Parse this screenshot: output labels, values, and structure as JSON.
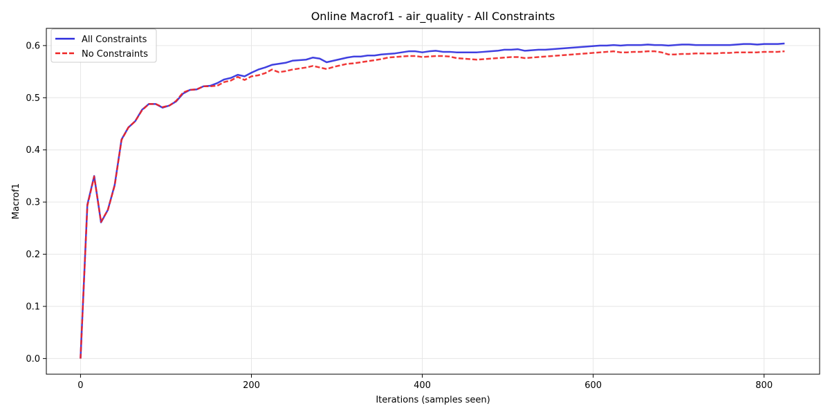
{
  "chart_data": {
    "type": "line",
    "title": "Online Macrof1 - air_quality - All Constraints",
    "xlabel": "Iterations (samples seen)",
    "ylabel": "Macrof1",
    "xlim": [
      -40,
      865
    ],
    "ylim": [
      -0.03,
      0.633
    ],
    "xticks": [
      0,
      200,
      400,
      600,
      800
    ],
    "yticks": [
      0.0,
      0.1,
      0.2,
      0.3,
      0.4,
      0.5,
      0.6
    ],
    "ytick_labels": [
      "0.0",
      "0.1",
      "0.2",
      "0.3",
      "0.4",
      "0.5",
      "0.6"
    ],
    "grid": true,
    "legend_position": "top-left",
    "series": [
      {
        "name": "All Constraints",
        "color": "#2b2bdd",
        "style": "solid",
        "points": [
          [
            0,
            0.0
          ],
          [
            8,
            0.295
          ],
          [
            16,
            0.35
          ],
          [
            24,
            0.261
          ],
          [
            32,
            0.285
          ],
          [
            40,
            0.333
          ],
          [
            48,
            0.42
          ],
          [
            56,
            0.443
          ],
          [
            64,
            0.455
          ],
          [
            72,
            0.477
          ],
          [
            80,
            0.488
          ],
          [
            88,
            0.488
          ],
          [
            96,
            0.481
          ],
          [
            104,
            0.485
          ],
          [
            112,
            0.493
          ],
          [
            120,
            0.508
          ],
          [
            128,
            0.515
          ],
          [
            136,
            0.516
          ],
          [
            144,
            0.522
          ],
          [
            152,
            0.523
          ],
          [
            160,
            0.528
          ],
          [
            168,
            0.535
          ],
          [
            176,
            0.538
          ],
          [
            184,
            0.544
          ],
          [
            192,
            0.541
          ],
          [
            200,
            0.548
          ],
          [
            208,
            0.554
          ],
          [
            216,
            0.558
          ],
          [
            224,
            0.563
          ],
          [
            232,
            0.565
          ],
          [
            240,
            0.567
          ],
          [
            248,
            0.571
          ],
          [
            256,
            0.572
          ],
          [
            264,
            0.573
          ],
          [
            272,
            0.577
          ],
          [
            280,
            0.575
          ],
          [
            288,
            0.568
          ],
          [
            296,
            0.571
          ],
          [
            304,
            0.574
          ],
          [
            312,
            0.577
          ],
          [
            320,
            0.579
          ],
          [
            328,
            0.579
          ],
          [
            336,
            0.581
          ],
          [
            344,
            0.581
          ],
          [
            352,
            0.583
          ],
          [
            360,
            0.584
          ],
          [
            368,
            0.585
          ],
          [
            376,
            0.587
          ],
          [
            384,
            0.589
          ],
          [
            392,
            0.589
          ],
          [
            400,
            0.587
          ],
          [
            408,
            0.589
          ],
          [
            416,
            0.59
          ],
          [
            424,
            0.588
          ],
          [
            432,
            0.588
          ],
          [
            440,
            0.587
          ],
          [
            448,
            0.587
          ],
          [
            456,
            0.587
          ],
          [
            464,
            0.587
          ],
          [
            472,
            0.588
          ],
          [
            480,
            0.589
          ],
          [
            488,
            0.59
          ],
          [
            496,
            0.592
          ],
          [
            504,
            0.592
          ],
          [
            512,
            0.593
          ],
          [
            520,
            0.59
          ],
          [
            528,
            0.591
          ],
          [
            536,
            0.592
          ],
          [
            544,
            0.592
          ],
          [
            552,
            0.593
          ],
          [
            560,
            0.594
          ],
          [
            568,
            0.595
          ],
          [
            576,
            0.596
          ],
          [
            584,
            0.597
          ],
          [
            592,
            0.598
          ],
          [
            600,
            0.599
          ],
          [
            608,
            0.6
          ],
          [
            616,
            0.6
          ],
          [
            624,
            0.601
          ],
          [
            632,
            0.6
          ],
          [
            640,
            0.601
          ],
          [
            648,
            0.601
          ],
          [
            656,
            0.601
          ],
          [
            664,
            0.602
          ],
          [
            672,
            0.601
          ],
          [
            680,
            0.601
          ],
          [
            688,
            0.6
          ],
          [
            696,
            0.601
          ],
          [
            704,
            0.602
          ],
          [
            712,
            0.602
          ],
          [
            720,
            0.601
          ],
          [
            728,
            0.601
          ],
          [
            736,
            0.601
          ],
          [
            744,
            0.601
          ],
          [
            752,
            0.601
          ],
          [
            760,
            0.601
          ],
          [
            768,
            0.602
          ],
          [
            776,
            0.603
          ],
          [
            784,
            0.603
          ],
          [
            792,
            0.602
          ],
          [
            800,
            0.603
          ],
          [
            808,
            0.603
          ],
          [
            816,
            0.603
          ],
          [
            824,
            0.604
          ]
        ]
      },
      {
        "name": "No Constraints",
        "color": "#ee2222",
        "style": "dashed",
        "points": [
          [
            0,
            0.0
          ],
          [
            8,
            0.293
          ],
          [
            16,
            0.349
          ],
          [
            24,
            0.262
          ],
          [
            32,
            0.285
          ],
          [
            40,
            0.332
          ],
          [
            48,
            0.419
          ],
          [
            56,
            0.443
          ],
          [
            64,
            0.455
          ],
          [
            72,
            0.476
          ],
          [
            80,
            0.488
          ],
          [
            88,
            0.488
          ],
          [
            96,
            0.482
          ],
          [
            104,
            0.485
          ],
          [
            112,
            0.494
          ],
          [
            120,
            0.51
          ],
          [
            128,
            0.515
          ],
          [
            136,
            0.516
          ],
          [
            144,
            0.522
          ],
          [
            152,
            0.522
          ],
          [
            160,
            0.523
          ],
          [
            168,
            0.53
          ],
          [
            176,
            0.533
          ],
          [
            184,
            0.54
          ],
          [
            192,
            0.534
          ],
          [
            200,
            0.541
          ],
          [
            208,
            0.543
          ],
          [
            216,
            0.547
          ],
          [
            224,
            0.554
          ],
          [
            232,
            0.549
          ],
          [
            240,
            0.551
          ],
          [
            248,
            0.554
          ],
          [
            256,
            0.556
          ],
          [
            264,
            0.558
          ],
          [
            272,
            0.561
          ],
          [
            280,
            0.558
          ],
          [
            288,
            0.555
          ],
          [
            296,
            0.559
          ],
          [
            304,
            0.562
          ],
          [
            312,
            0.565
          ],
          [
            320,
            0.566
          ],
          [
            328,
            0.568
          ],
          [
            336,
            0.57
          ],
          [
            344,
            0.572
          ],
          [
            352,
            0.574
          ],
          [
            360,
            0.577
          ],
          [
            368,
            0.578
          ],
          [
            376,
            0.579
          ],
          [
            384,
            0.58
          ],
          [
            392,
            0.58
          ],
          [
            400,
            0.578
          ],
          [
            408,
            0.579
          ],
          [
            416,
            0.58
          ],
          [
            424,
            0.58
          ],
          [
            432,
            0.579
          ],
          [
            440,
            0.576
          ],
          [
            448,
            0.575
          ],
          [
            456,
            0.574
          ],
          [
            464,
            0.573
          ],
          [
            472,
            0.574
          ],
          [
            480,
            0.575
          ],
          [
            488,
            0.576
          ],
          [
            496,
            0.577
          ],
          [
            504,
            0.578
          ],
          [
            512,
            0.578
          ],
          [
            520,
            0.576
          ],
          [
            528,
            0.577
          ],
          [
            536,
            0.578
          ],
          [
            544,
            0.579
          ],
          [
            552,
            0.58
          ],
          [
            560,
            0.581
          ],
          [
            568,
            0.582
          ],
          [
            576,
            0.583
          ],
          [
            584,
            0.584
          ],
          [
            592,
            0.585
          ],
          [
            600,
            0.586
          ],
          [
            608,
            0.587
          ],
          [
            616,
            0.588
          ],
          [
            624,
            0.589
          ],
          [
            632,
            0.587
          ],
          [
            640,
            0.587
          ],
          [
            648,
            0.588
          ],
          [
            656,
            0.588
          ],
          [
            664,
            0.589
          ],
          [
            672,
            0.589
          ],
          [
            680,
            0.587
          ],
          [
            688,
            0.583
          ],
          [
            696,
            0.583
          ],
          [
            704,
            0.584
          ],
          [
            712,
            0.584
          ],
          [
            720,
            0.585
          ],
          [
            728,
            0.585
          ],
          [
            736,
            0.585
          ],
          [
            744,
            0.585
          ],
          [
            752,
            0.586
          ],
          [
            760,
            0.586
          ],
          [
            768,
            0.587
          ],
          [
            776,
            0.587
          ],
          [
            784,
            0.587
          ],
          [
            792,
            0.587
          ],
          [
            800,
            0.588
          ],
          [
            808,
            0.588
          ],
          [
            816,
            0.588
          ],
          [
            824,
            0.589
          ]
        ]
      }
    ]
  }
}
